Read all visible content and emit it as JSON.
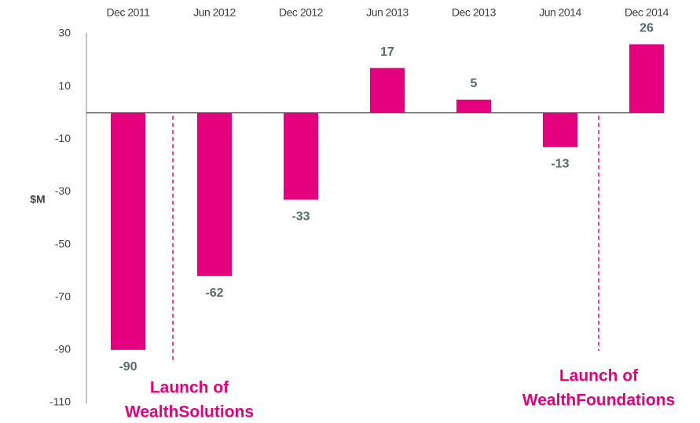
{
  "chart_data": {
    "type": "bar",
    "categories": [
      "Dec 2011",
      "Jun 2012",
      "Dec 2012",
      "Jun 2013",
      "Dec 2013",
      "Jun 2014",
      "Dec 2014"
    ],
    "values": [
      -90,
      -62,
      -33,
      17,
      5,
      -13,
      26
    ],
    "color": "#e5007d",
    "ylabel": "$M",
    "ylim": [
      -110,
      30
    ],
    "yticks": [
      30,
      10,
      -10,
      -30,
      -50,
      -70,
      -90,
      -110
    ],
    "grid": false,
    "annotations": [
      {
        "lines": [
          "Launch of",
          "WealthSolutions"
        ]
      },
      {
        "lines": [
          "Launch of",
          "WealthFoundations"
        ]
      }
    ]
  }
}
